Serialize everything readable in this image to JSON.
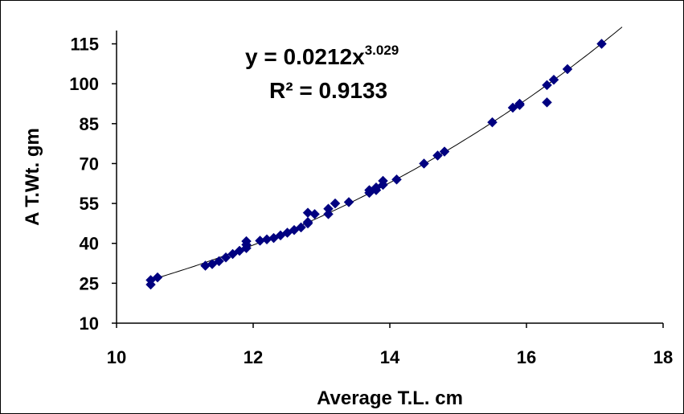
{
  "chart_data": {
    "type": "scatter",
    "title": "",
    "xlabel": "Average T.L. cm",
    "ylabel": "A T.Wt. gm",
    "xlim": [
      10,
      18
    ],
    "ylim": [
      10,
      120
    ],
    "xticks": [
      "10",
      "12",
      "14",
      "16",
      "18"
    ],
    "yticks": [
      "10",
      "25",
      "40",
      "55",
      "70",
      "85",
      "100",
      "115"
    ],
    "grid": false,
    "legend": "none",
    "marker": "diamond",
    "marker_color": "#000080",
    "trendline": {
      "type": "power",
      "a": 0.0212,
      "b": 3.029,
      "equation_label": "y = 0.0212x",
      "equation_exponent": "3.029",
      "r2_label": "R² = 0.9133"
    },
    "series": [
      {
        "points": [
          [
            10.5,
            26.2
          ],
          [
            10.5,
            24.5
          ],
          [
            10.6,
            27.2
          ],
          [
            11.3,
            31.6
          ],
          [
            11.4,
            32.2
          ],
          [
            11.5,
            33.3
          ],
          [
            11.6,
            34.7
          ],
          [
            11.7,
            36.0
          ],
          [
            11.8,
            37.2
          ],
          [
            11.9,
            38.2
          ],
          [
            11.9,
            39.5
          ],
          [
            11.9,
            40.8
          ],
          [
            12.1,
            41.0
          ],
          [
            12.2,
            41.5
          ],
          [
            12.3,
            42.0
          ],
          [
            12.4,
            43.0
          ],
          [
            12.5,
            44.0
          ],
          [
            12.6,
            45.0
          ],
          [
            12.7,
            46.0
          ],
          [
            12.8,
            47.5
          ],
          [
            12.8,
            48.0
          ],
          [
            12.8,
            51.5
          ],
          [
            12.9,
            51.0
          ],
          [
            13.1,
            51.0
          ],
          [
            13.1,
            53.0
          ],
          [
            13.2,
            55.0
          ],
          [
            13.4,
            55.5
          ],
          [
            13.7,
            59.0
          ],
          [
            13.7,
            60.0
          ],
          [
            13.8,
            60.0
          ],
          [
            13.8,
            61.0
          ],
          [
            13.9,
            62.0
          ],
          [
            13.9,
            63.5
          ],
          [
            14.1,
            64.0
          ],
          [
            14.5,
            70.0
          ],
          [
            14.7,
            73.0
          ],
          [
            14.8,
            74.5
          ],
          [
            15.5,
            85.5
          ],
          [
            15.8,
            91.0
          ],
          [
            15.9,
            92.0
          ],
          [
            15.9,
            92.5
          ],
          [
            16.3,
            93.0
          ],
          [
            16.3,
            99.5
          ],
          [
            16.4,
            101.5
          ],
          [
            16.6,
            105.5
          ],
          [
            17.1,
            115.0
          ]
        ]
      }
    ]
  }
}
